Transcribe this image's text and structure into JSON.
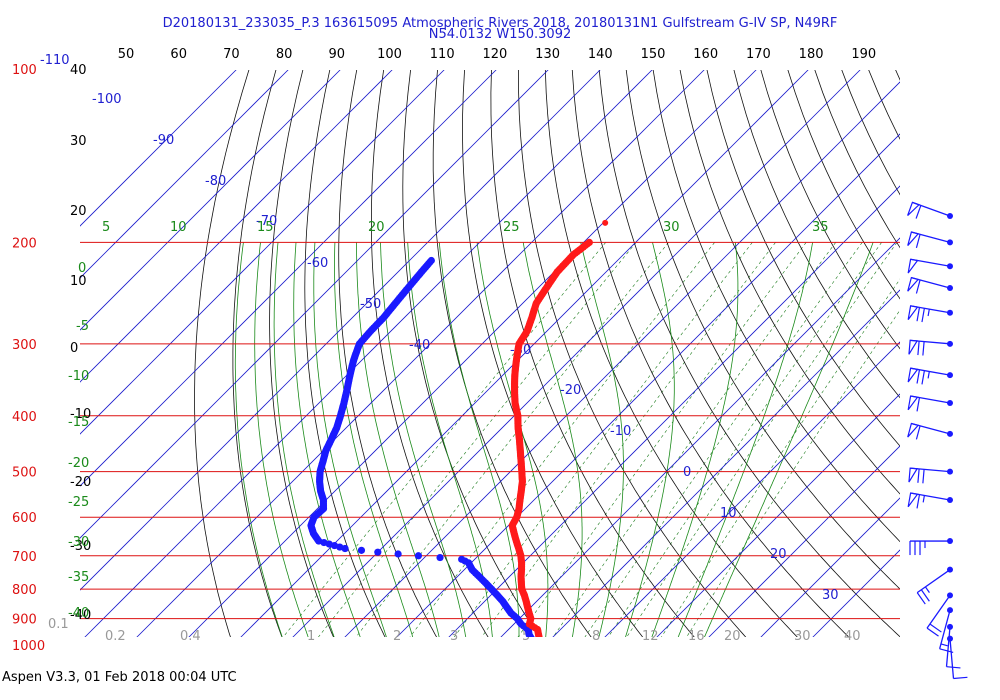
{
  "header": {
    "title_line1": "D20180131_233035_P.3 163615095 Atmospheric Rivers 2018, 20180131N1 Gulfstream G-IV SP, N49RF",
    "title_line2": "N54.0132 W150.3092"
  },
  "footer": {
    "text": "Aspen V3.3, 01 Feb 2018  00:04 UTC"
  },
  "colors": {
    "isobar": "#dd1111",
    "isotherm": "#1a1acc",
    "dry_adiabat": "#111111",
    "moist_adiabat": "#1a8a1a",
    "mixing_ratio": "#1a7a1a",
    "temperature": "#ff1a1a",
    "dewpoint": "#1a1aff",
    "wind": "#1a1aff",
    "text_blue": "#2020d0"
  },
  "chart_data": {
    "type": "skew-t",
    "pressure_labels": [
      "100",
      "200",
      "300",
      "400",
      "500",
      "600",
      "700",
      "800",
      "900",
      "1000"
    ],
    "top_temp_ticks_f": [
      "50",
      "60",
      "70",
      "80",
      "90",
      "100",
      "110",
      "120",
      "130",
      "140",
      "150",
      "160",
      "170",
      "180",
      "190"
    ],
    "top_left_label": "-110",
    "left_altitude_labels": [
      "40",
      "30",
      "20",
      "10",
      "0",
      "-10",
      "-20",
      "-30",
      "-40"
    ],
    "isotherm_labels": [
      "-100",
      "-90",
      "-80",
      "-70",
      "-60",
      "-50",
      "-40",
      "-30",
      "-20",
      "-10",
      "0",
      "10",
      "20",
      "30"
    ],
    "moist_adiabat_labels_top": [
      "5",
      "10",
      "15",
      "20",
      "25",
      "30",
      "35"
    ],
    "moist_adiabat_labels_left": [
      "0",
      "-5",
      "-10",
      "-15",
      "-20",
      "-25",
      "-30",
      "-35",
      "-40"
    ],
    "mixing_ratio_labels": [
      "0.1",
      "0.2",
      "0.4",
      "1",
      "2",
      "3",
      "5",
      "8",
      "12",
      "16",
      "20",
      "30",
      "40"
    ],
    "temperature_profile": [
      {
        "p": 1000,
        "t": 10.0
      },
      {
        "p": 980,
        "t": 8.0
      },
      {
        "p": 960,
        "t": 6.8
      },
      {
        "p": 940,
        "t": 5.6
      },
      {
        "p": 920,
        "t": 3.0
      },
      {
        "p": 900,
        "t": 2.2
      },
      {
        "p": 880,
        "t": 0.8
      },
      {
        "p": 860,
        "t": -0.6
      },
      {
        "p": 840,
        "t": -2.0
      },
      {
        "p": 820,
        "t": -3.5
      },
      {
        "p": 800,
        "t": -5.2
      },
      {
        "p": 780,
        "t": -6.5
      },
      {
        "p": 760,
        "t": -7.8
      },
      {
        "p": 740,
        "t": -9.0
      },
      {
        "p": 720,
        "t": -10.3
      },
      {
        "p": 700,
        "t": -11.8
      },
      {
        "p": 680,
        "t": -13.6
      },
      {
        "p": 660,
        "t": -15.5
      },
      {
        "p": 640,
        "t": -17.4
      },
      {
        "p": 620,
        "t": -19.3
      },
      {
        "p": 600,
        "t": -20.0
      },
      {
        "p": 580,
        "t": -21.2
      },
      {
        "p": 560,
        "t": -22.7
      },
      {
        "p": 540,
        "t": -24.2
      },
      {
        "p": 520,
        "t": -25.8
      },
      {
        "p": 500,
        "t": -27.8
      },
      {
        "p": 480,
        "t": -29.9
      },
      {
        "p": 460,
        "t": -32.1
      },
      {
        "p": 440,
        "t": -34.4
      },
      {
        "p": 420,
        "t": -36.9
      },
      {
        "p": 400,
        "t": -39.3
      },
      {
        "p": 380,
        "t": -42.3
      },
      {
        "p": 360,
        "t": -45.0
      },
      {
        "p": 340,
        "t": -47.7
      },
      {
        "p": 320,
        "t": -50.3
      },
      {
        "p": 300,
        "t": -52.9
      },
      {
        "p": 285,
        "t": -53.8
      },
      {
        "p": 270,
        "t": -55.5
      },
      {
        "p": 255,
        "t": -57.4
      },
      {
        "p": 240,
        "t": -58.4
      },
      {
        "p": 225,
        "t": -59.4
      },
      {
        "p": 210,
        "t": -59.6
      },
      {
        "p": 200,
        "t": -58.9
      }
    ],
    "temperature_isolated_point": {
      "p": 185,
      "t": -59.6
    },
    "dewpoint_profile": [
      {
        "p": 1000,
        "t": 9.0
      },
      {
        "p": 980,
        "t": 6.6
      },
      {
        "p": 960,
        "t": 5.0
      },
      {
        "p": 940,
        "t": 3.8
      },
      {
        "p": 920,
        "t": 1.4
      },
      {
        "p": 900,
        "t": -0.4
      },
      {
        "p": 880,
        "t": -2.7
      },
      {
        "p": 860,
        "t": -4.6
      },
      {
        "p": 840,
        "t": -6.5
      },
      {
        "p": 820,
        "t": -8.7
      },
      {
        "p": 800,
        "t": -11.0
      },
      {
        "p": 780,
        "t": -13.4
      },
      {
        "p": 760,
        "t": -15.9
      },
      {
        "p": 740,
        "t": -18.5
      },
      {
        "p": 720,
        "t": -20.5
      },
      {
        "p": 710,
        "t": -22.5
      },
      {
        "p": 700,
        "t": -31.5
      },
      {
        "p": 690,
        "t": -40.0
      },
      {
        "p": 680,
        "t": -47.0
      },
      {
        "p": 660,
        "t": -53.5
      },
      {
        "p": 640,
        "t": -56.0
      },
      {
        "p": 620,
        "t": -58.0
      },
      {
        "p": 600,
        "t": -59.0
      },
      {
        "p": 580,
        "t": -58.8
      },
      {
        "p": 560,
        "t": -60.5
      },
      {
        "p": 540,
        "t": -62.8
      },
      {
        "p": 520,
        "t": -64.8
      },
      {
        "p": 500,
        "t": -66.6
      },
      {
        "p": 480,
        "t": -68.0
      },
      {
        "p": 460,
        "t": -69.5
      },
      {
        "p": 440,
        "t": -70.6
      },
      {
        "p": 420,
        "t": -71.8
      },
      {
        "p": 400,
        "t": -73.4
      },
      {
        "p": 380,
        "t": -75.2
      },
      {
        "p": 360,
        "t": -77.2
      },
      {
        "p": 340,
        "t": -79.4
      },
      {
        "p": 320,
        "t": -81.6
      },
      {
        "p": 300,
        "t": -83.6
      },
      {
        "p": 285,
        "t": -83.9
      },
      {
        "p": 270,
        "t": -84.0
      },
      {
        "p": 255,
        "t": -84.5
      },
      {
        "p": 240,
        "t": -85.0
      },
      {
        "p": 225,
        "t": -85.5
      },
      {
        "p": 215,
        "t": -85.8
      }
    ],
    "wind_barbs": [
      {
        "p": 180,
        "dir": 290,
        "kts": 60
      },
      {
        "p": 200,
        "dir": 285,
        "kts": 60
      },
      {
        "p": 220,
        "dir": 280,
        "kts": 50
      },
      {
        "p": 240,
        "dir": 285,
        "kts": 60
      },
      {
        "p": 265,
        "dir": 280,
        "kts": 75
      },
      {
        "p": 300,
        "dir": 275,
        "kts": 70
      },
      {
        "p": 340,
        "dir": 280,
        "kts": 75
      },
      {
        "p": 380,
        "dir": 280,
        "kts": 60
      },
      {
        "p": 430,
        "dir": 285,
        "kts": 60
      },
      {
        "p": 500,
        "dir": 275,
        "kts": 70
      },
      {
        "p": 560,
        "dir": 280,
        "kts": 65
      },
      {
        "p": 660,
        "dir": 270,
        "kts": 35
      },
      {
        "p": 740,
        "dir": 235,
        "kts": 25
      },
      {
        "p": 820,
        "dir": 215,
        "kts": 20
      },
      {
        "p": 870,
        "dir": 195,
        "kts": 15
      },
      {
        "p": 930,
        "dir": 185,
        "kts": 10
      },
      {
        "p": 975,
        "dir": 175,
        "kts": 10
      }
    ],
    "ylim_hpa": [
      1050,
      100
    ],
    "log_pressure_axis": true,
    "grid": true
  }
}
